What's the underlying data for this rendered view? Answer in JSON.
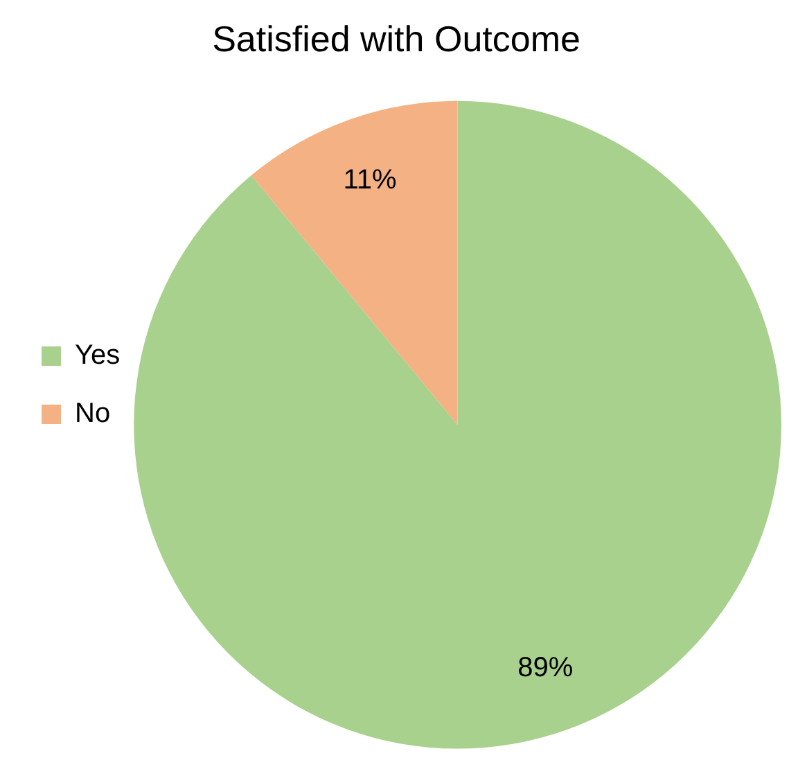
{
  "chart_data": {
    "type": "pie",
    "title": "Satisfied with Outcome",
    "categories": [
      "Yes",
      "No"
    ],
    "values": [
      89,
      11
    ],
    "colors": [
      "#a9d18e",
      "#f4b183"
    ],
    "value_labels": [
      "89%",
      "11%"
    ],
    "legend": "left"
  }
}
